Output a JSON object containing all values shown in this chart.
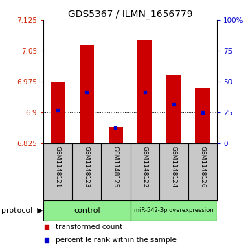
{
  "title": "GDS5367 / ILMN_1656779",
  "samples": [
    "GSM1148121",
    "GSM1148123",
    "GSM1148125",
    "GSM1148122",
    "GSM1148124",
    "GSM1148126"
  ],
  "bar_bottom": 6.825,
  "bar_tops": [
    6.975,
    7.065,
    6.865,
    7.075,
    6.99,
    6.96
  ],
  "blue_positions": [
    6.905,
    6.95,
    6.863,
    6.95,
    6.92,
    6.9
  ],
  "ylim_left": [
    6.825,
    7.125
  ],
  "ylim_right": [
    0,
    100
  ],
  "yticks_left": [
    6.825,
    6.9,
    6.975,
    7.05,
    7.125
  ],
  "yticks_right": [
    0,
    25,
    50,
    75,
    100
  ],
  "ytick_labels_left": [
    "6.825",
    "6.9",
    "6.975",
    "7.05",
    "7.125"
  ],
  "ytick_labels_right": [
    "0",
    "25",
    "50",
    "75",
    "100%"
  ],
  "hgrid_lines": [
    6.9,
    6.975,
    7.05
  ],
  "bar_color": "#CC0000",
  "blue_color": "#0000CC",
  "bar_width": 0.5,
  "bg_color": "#FFFFFF",
  "label_color_left": "#CC2200",
  "label_color_right": "#0000CC",
  "tick_fontsize": 7.5,
  "title_fontsize": 10,
  "sample_fontsize": 6.5,
  "legend_fontsize": 7.5,
  "protocol_fontsize": 8
}
